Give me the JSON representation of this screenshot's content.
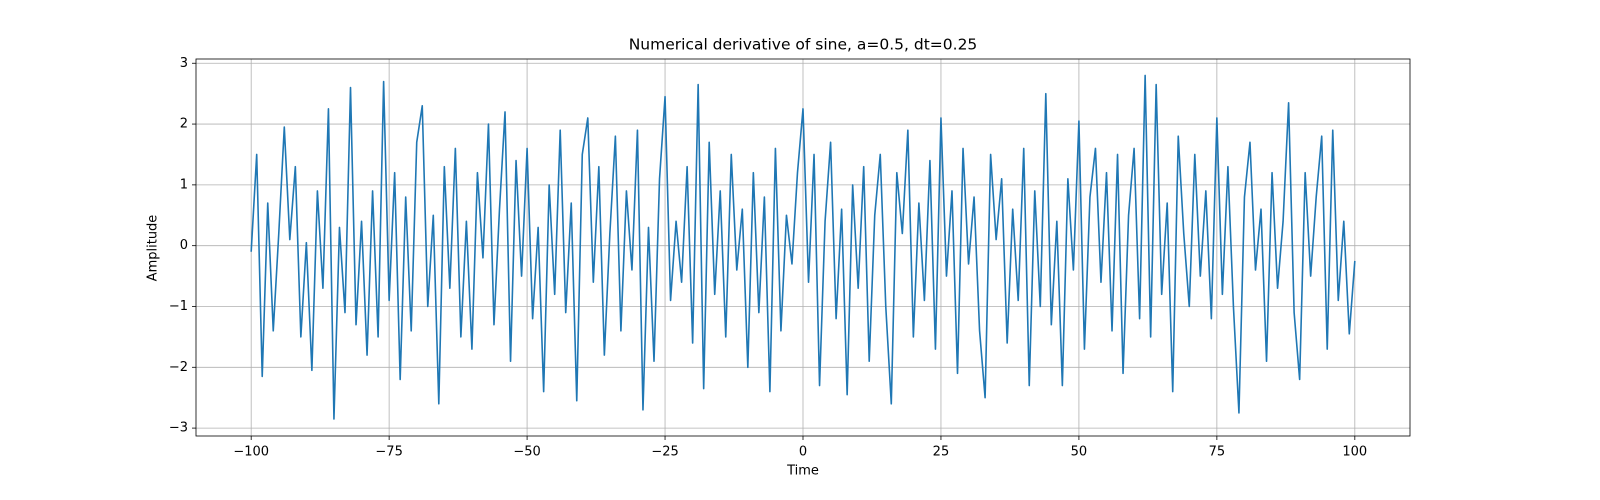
{
  "chart_data": {
    "type": "line",
    "title": "Numerical derivative of sine, a=0.5, dt=0.25",
    "xlabel": "Time",
    "ylabel": "Amplitude",
    "color": "#1f77b4",
    "grid": true,
    "xlim": [
      -110,
      110
    ],
    "ylim": [
      -3.13,
      3.07
    ],
    "xticks": [
      {
        "value": -100,
        "label": "−100"
      },
      {
        "value": -75,
        "label": "−75"
      },
      {
        "value": -50,
        "label": "−50"
      },
      {
        "value": -25,
        "label": "−25"
      },
      0,
      25,
      50,
      75,
      100
    ],
    "yticks": [
      {
        "value": -3,
        "label": "−3"
      },
      {
        "value": -2,
        "label": "−2"
      },
      {
        "value": -1,
        "label": "−1"
      },
      0,
      1,
      2,
      3
    ],
    "x": [
      -100,
      -99,
      -98,
      -97,
      -96,
      -95,
      -94,
      -93,
      -92,
      -91,
      -90,
      -89,
      -88,
      -87,
      -86,
      -85,
      -84,
      -83,
      -82,
      -81,
      -80,
      -79,
      -78,
      -77,
      -76,
      -75,
      -74,
      -73,
      -72,
      -71,
      -70,
      -69,
      -68,
      -67,
      -66,
      -65,
      -64,
      -63,
      -62,
      -61,
      -60,
      -59,
      -58,
      -57,
      -56,
      -55,
      -54,
      -53,
      -52,
      -51,
      -50,
      -49,
      -48,
      -47,
      -46,
      -45,
      -44,
      -43,
      -42,
      -41,
      -40,
      -39,
      -38,
      -37,
      -36,
      -35,
      -34,
      -33,
      -32,
      -31,
      -30,
      -29,
      -28,
      -27,
      -26,
      -25,
      -24,
      -23,
      -22,
      -21,
      -20,
      -19,
      -18,
      -17,
      -16,
      -15,
      -14,
      -13,
      -12,
      -11,
      -10,
      -9,
      -8,
      -7,
      -6,
      -5,
      -4,
      -3,
      -2,
      -1,
      0,
      1,
      2,
      3,
      4,
      5,
      6,
      7,
      8,
      9,
      10,
      11,
      12,
      13,
      14,
      15,
      16,
      17,
      18,
      19,
      20,
      21,
      22,
      23,
      24,
      25,
      26,
      27,
      28,
      29,
      30,
      31,
      32,
      33,
      34,
      35,
      36,
      37,
      38,
      39,
      40,
      41,
      42,
      43,
      44,
      45,
      46,
      47,
      48,
      49,
      50,
      51,
      52,
      53,
      54,
      55,
      56,
      57,
      58,
      59,
      60,
      61,
      62,
      63,
      64,
      65,
      66,
      67,
      68,
      69,
      70,
      71,
      72,
      73,
      74,
      75,
      76,
      77,
      78,
      79,
      80,
      81,
      82,
      83,
      84,
      85,
      86,
      87,
      88,
      89,
      90,
      91,
      92,
      93,
      94,
      95,
      96,
      97,
      98,
      99,
      100
    ],
    "values": [
      -0.1,
      1.5,
      -2.15,
      0.7,
      -1.4,
      0.2,
      1.95,
      0.1,
      1.3,
      -1.5,
      0.05,
      -2.05,
      0.9,
      -0.7,
      2.25,
      -2.85,
      0.3,
      -1.1,
      2.6,
      -1.3,
      0.4,
      -1.8,
      0.9,
      -1.5,
      2.7,
      -0.9,
      1.2,
      -2.2,
      0.8,
      -1.4,
      1.7,
      2.3,
      -1.0,
      0.5,
      -2.6,
      1.3,
      -0.7,
      1.6,
      -1.5,
      0.4,
      -1.7,
      1.2,
      -0.2,
      2.0,
      -1.3,
      0.6,
      2.2,
      -1.9,
      1.4,
      -0.5,
      1.6,
      -1.2,
      0.3,
      -2.4,
      1.0,
      -0.8,
      1.9,
      -1.1,
      0.7,
      -2.55,
      1.5,
      2.1,
      -0.6,
      1.3,
      -1.8,
      0.2,
      1.8,
      -1.4,
      0.9,
      -0.4,
      1.9,
      -2.7,
      0.3,
      -1.9,
      1.1,
      2.45,
      -0.9,
      0.4,
      -0.6,
      1.3,
      -1.6,
      2.65,
      -2.35,
      1.7,
      -0.8,
      0.9,
      -1.5,
      1.5,
      -0.4,
      0.6,
      -2.0,
      1.2,
      -1.1,
      0.8,
      -2.4,
      1.6,
      -1.4,
      0.5,
      -0.3,
      1.2,
      2.25,
      -0.6,
      1.5,
      -2.3,
      0.4,
      1.7,
      -1.2,
      0.6,
      -2.45,
      1.0,
      -0.7,
      1.3,
      -1.9,
      0.5,
      1.5,
      -1.0,
      -2.6,
      1.2,
      0.2,
      1.9,
      -1.5,
      0.7,
      -0.9,
      1.4,
      -1.7,
      2.1,
      -0.5,
      0.9,
      -2.1,
      1.6,
      -0.3,
      0.8,
      -1.4,
      -2.5,
      1.5,
      0.1,
      1.1,
      -1.6,
      0.6,
      -0.9,
      1.6,
      -2.3,
      0.9,
      -1.0,
      2.5,
      -1.3,
      0.4,
      -2.3,
      1.1,
      -0.4,
      2.05,
      -1.7,
      0.8,
      1.6,
      -0.6,
      1.2,
      -1.4,
      1.5,
      -2.1,
      0.5,
      1.6,
      -1.2,
      2.8,
      -1.5,
      2.65,
      -0.8,
      0.7,
      -2.4,
      1.8,
      0.2,
      -1.0,
      1.5,
      -0.5,
      0.9,
      -1.2,
      2.1,
      -0.8,
      1.3,
      -1.0,
      -2.75,
      0.8,
      1.7,
      -0.4,
      0.6,
      -1.9,
      1.2,
      -0.7,
      0.4,
      2.35,
      -1.1,
      -2.2,
      1.2,
      -0.5,
      0.8,
      1.8,
      -1.7,
      1.9,
      -0.9,
      0.4,
      -1.45,
      -0.25
    ]
  }
}
